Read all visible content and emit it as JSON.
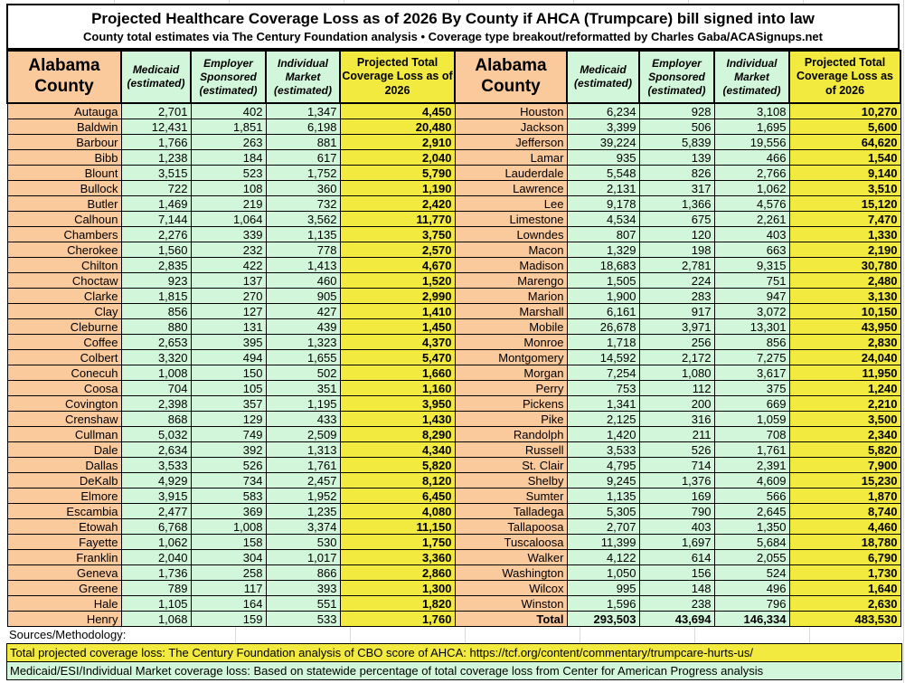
{
  "chart_data": {
    "type": "table",
    "title": "Projected Healthcare Coverage Loss as of 2026 By County if AHCA (Trumpcare) bill signed into law",
    "subtitle": "County total estimates via The Century Foundation analysis • Coverage type breakout/reformatted by Charles Gaba/ACASignups.net",
    "columns": [
      "Alabama County",
      "Medicaid (estimated)",
      "Employer Sponsored (estimated)",
      "Individual Market (estimated)",
      "Projected Total Coverage Loss as of 2026"
    ],
    "left_rows": [
      [
        "Autauga",
        "2,701",
        "402",
        "1,347",
        "4,450"
      ],
      [
        "Baldwin",
        "12,431",
        "1,851",
        "6,198",
        "20,480"
      ],
      [
        "Barbour",
        "1,766",
        "263",
        "881",
        "2,910"
      ],
      [
        "Bibb",
        "1,238",
        "184",
        "617",
        "2,040"
      ],
      [
        "Blount",
        "3,515",
        "523",
        "1,752",
        "5,790"
      ],
      [
        "Bullock",
        "722",
        "108",
        "360",
        "1,190"
      ],
      [
        "Butler",
        "1,469",
        "219",
        "732",
        "2,420"
      ],
      [
        "Calhoun",
        "7,144",
        "1,064",
        "3,562",
        "11,770"
      ],
      [
        "Chambers",
        "2,276",
        "339",
        "1,135",
        "3,750"
      ],
      [
        "Cherokee",
        "1,560",
        "232",
        "778",
        "2,570"
      ],
      [
        "Chilton",
        "2,835",
        "422",
        "1,413",
        "4,670"
      ],
      [
        "Choctaw",
        "923",
        "137",
        "460",
        "1,520"
      ],
      [
        "Clarke",
        "1,815",
        "270",
        "905",
        "2,990"
      ],
      [
        "Clay",
        "856",
        "127",
        "427",
        "1,410"
      ],
      [
        "Cleburne",
        "880",
        "131",
        "439",
        "1,450"
      ],
      [
        "Coffee",
        "2,653",
        "395",
        "1,323",
        "4,370"
      ],
      [
        "Colbert",
        "3,320",
        "494",
        "1,655",
        "5,470"
      ],
      [
        "Conecuh",
        "1,008",
        "150",
        "502",
        "1,660"
      ],
      [
        "Coosa",
        "704",
        "105",
        "351",
        "1,160"
      ],
      [
        "Covington",
        "2,398",
        "357",
        "1,195",
        "3,950"
      ],
      [
        "Crenshaw",
        "868",
        "129",
        "433",
        "1,430"
      ],
      [
        "Cullman",
        "5,032",
        "749",
        "2,509",
        "8,290"
      ],
      [
        "Dale",
        "2,634",
        "392",
        "1,313",
        "4,340"
      ],
      [
        "Dallas",
        "3,533",
        "526",
        "1,761",
        "5,820"
      ],
      [
        "DeKalb",
        "4,929",
        "734",
        "2,457",
        "8,120"
      ],
      [
        "Elmore",
        "3,915",
        "583",
        "1,952",
        "6,450"
      ],
      [
        "Escambia",
        "2,477",
        "369",
        "1,235",
        "4,080"
      ],
      [
        "Etowah",
        "6,768",
        "1,008",
        "3,374",
        "11,150"
      ],
      [
        "Fayette",
        "1,062",
        "158",
        "530",
        "1,750"
      ],
      [
        "Franklin",
        "2,040",
        "304",
        "1,017",
        "3,360"
      ],
      [
        "Geneva",
        "1,736",
        "258",
        "866",
        "2,860"
      ],
      [
        "Greene",
        "789",
        "117",
        "393",
        "1,300"
      ],
      [
        "Hale",
        "1,105",
        "164",
        "551",
        "1,820"
      ],
      [
        "Henry",
        "1,068",
        "159",
        "533",
        "1,760"
      ]
    ],
    "right_rows": [
      [
        "Houston",
        "6,234",
        "928",
        "3,108",
        "10,270"
      ],
      [
        "Jackson",
        "3,399",
        "506",
        "1,695",
        "5,600"
      ],
      [
        "Jefferson",
        "39,224",
        "5,839",
        "19,556",
        "64,620"
      ],
      [
        "Lamar",
        "935",
        "139",
        "466",
        "1,540"
      ],
      [
        "Lauderdale",
        "5,548",
        "826",
        "2,766",
        "9,140"
      ],
      [
        "Lawrence",
        "2,131",
        "317",
        "1,062",
        "3,510"
      ],
      [
        "Lee",
        "9,178",
        "1,366",
        "4,576",
        "15,120"
      ],
      [
        "Limestone",
        "4,534",
        "675",
        "2,261",
        "7,470"
      ],
      [
        "Lowndes",
        "807",
        "120",
        "403",
        "1,330"
      ],
      [
        "Macon",
        "1,329",
        "198",
        "663",
        "2,190"
      ],
      [
        "Madison",
        "18,683",
        "2,781",
        "9,315",
        "30,780"
      ],
      [
        "Marengo",
        "1,505",
        "224",
        "751",
        "2,480"
      ],
      [
        "Marion",
        "1,900",
        "283",
        "947",
        "3,130"
      ],
      [
        "Marshall",
        "6,161",
        "917",
        "3,072",
        "10,150"
      ],
      [
        "Mobile",
        "26,678",
        "3,971",
        "13,301",
        "43,950"
      ],
      [
        "Monroe",
        "1,718",
        "256",
        "856",
        "2,830"
      ],
      [
        "Montgomery",
        "14,592",
        "2,172",
        "7,275",
        "24,040"
      ],
      [
        "Morgan",
        "7,254",
        "1,080",
        "3,617",
        "11,950"
      ],
      [
        "Perry",
        "753",
        "112",
        "375",
        "1,240"
      ],
      [
        "Pickens",
        "1,341",
        "200",
        "669",
        "2,210"
      ],
      [
        "Pike",
        "2,125",
        "316",
        "1,059",
        "3,500"
      ],
      [
        "Randolph",
        "1,420",
        "211",
        "708",
        "2,340"
      ],
      [
        "Russell",
        "3,533",
        "526",
        "1,761",
        "5,820"
      ],
      [
        "St. Clair",
        "4,795",
        "714",
        "2,391",
        "7,900"
      ],
      [
        "Shelby",
        "9,245",
        "1,376",
        "4,609",
        "15,230"
      ],
      [
        "Sumter",
        "1,135",
        "169",
        "566",
        "1,870"
      ],
      [
        "Talladega",
        "5,305",
        "790",
        "2,645",
        "8,740"
      ],
      [
        "Tallapoosa",
        "2,707",
        "403",
        "1,350",
        "4,460"
      ],
      [
        "Tuscaloosa",
        "11,399",
        "1,697",
        "5,684",
        "18,780"
      ],
      [
        "Walker",
        "4,122",
        "614",
        "2,055",
        "6,790"
      ],
      [
        "Washington",
        "1,050",
        "156",
        "524",
        "1,730"
      ],
      [
        "Wilcox",
        "995",
        "148",
        "496",
        "1,640"
      ],
      [
        "Winston",
        "1,596",
        "238",
        "796",
        "2,630"
      ]
    ],
    "total_row": [
      "Total",
      "293,503",
      "43,694",
      "146,334",
      "483,530"
    ]
  },
  "footer": {
    "sources_label": "Sources/Methodology:",
    "total_loss_source": "Total projected coverage loss: The Century Foundation analysis of CBO score of AHCA: https://tcf.org/content/commentary/trumpcare-hurts-us/",
    "breakout_source": "Medicaid/ESI/Individual Market coverage loss: Based on statewide percentage of total coverage loss from Center for American Progress analysis"
  },
  "colors": {
    "county_bg": "#FAC99C",
    "data_bg": "#D2F6DA",
    "total_bg": "#F2EA3E"
  }
}
